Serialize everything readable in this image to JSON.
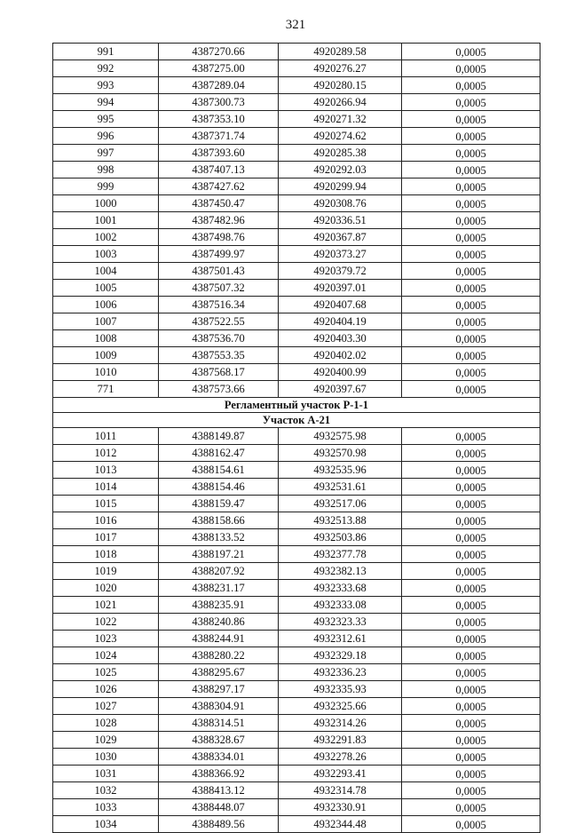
{
  "page_number": "321",
  "table": {
    "groups": [
      {
        "rows": [
          [
            "991",
            "4387270.66",
            "4920289.58",
            "0,0005"
          ],
          [
            "992",
            "4387275.00",
            "4920276.27",
            "0,0005"
          ],
          [
            "993",
            "4387289.04",
            "4920280.15",
            "0,0005"
          ],
          [
            "994",
            "4387300.73",
            "4920266.94",
            "0,0005"
          ],
          [
            "995",
            "4387353.10",
            "4920271.32",
            "0,0005"
          ],
          [
            "996",
            "4387371.74",
            "4920274.62",
            "0,0005"
          ],
          [
            "997",
            "4387393.60",
            "4920285.38",
            "0,0005"
          ],
          [
            "998",
            "4387407.13",
            "4920292.03",
            "0,0005"
          ],
          [
            "999",
            "4387427.62",
            "4920299.94",
            "0,0005"
          ],
          [
            "1000",
            "4387450.47",
            "4920308.76",
            "0,0005"
          ],
          [
            "1001",
            "4387482.96",
            "4920336.51",
            "0,0005"
          ],
          [
            "1002",
            "4387498.76",
            "4920367.87",
            "0,0005"
          ],
          [
            "1003",
            "4387499.97",
            "4920373.27",
            "0,0005"
          ],
          [
            "1004",
            "4387501.43",
            "4920379.72",
            "0,0005"
          ],
          [
            "1005",
            "4387507.32",
            "4920397.01",
            "0,0005"
          ],
          [
            "1006",
            "4387516.34",
            "4920407.68",
            "0,0005"
          ],
          [
            "1007",
            "4387522.55",
            "4920404.19",
            "0,0005"
          ],
          [
            "1008",
            "4387536.70",
            "4920403.30",
            "0,0005"
          ],
          [
            "1009",
            "4387553.35",
            "4920402.02",
            "0,0005"
          ],
          [
            "1010",
            "4387568.17",
            "4920400.99",
            "0,0005"
          ],
          [
            "771",
            "4387573.66",
            "4920397.67",
            "0,0005"
          ]
        ]
      },
      {
        "section_titles": [
          "Регламентный участок Р-1-1",
          "Участок А-21"
        ],
        "rows": [
          [
            "1011",
            "4388149.87",
            "4932575.98",
            "0,0005"
          ],
          [
            "1012",
            "4388162.47",
            "4932570.98",
            "0,0005"
          ],
          [
            "1013",
            "4388154.61",
            "4932535.96",
            "0,0005"
          ],
          [
            "1014",
            "4388154.46",
            "4932531.61",
            "0,0005"
          ],
          [
            "1015",
            "4388159.47",
            "4932517.06",
            "0,0005"
          ],
          [
            "1016",
            "4388158.66",
            "4932513.88",
            "0,0005"
          ],
          [
            "1017",
            "4388133.52",
            "4932503.86",
            "0,0005"
          ],
          [
            "1018",
            "4388197.21",
            "4932377.78",
            "0,0005"
          ],
          [
            "1019",
            "4388207.92",
            "4932382.13",
            "0,0005"
          ],
          [
            "1020",
            "4388231.17",
            "4932333.68",
            "0,0005"
          ],
          [
            "1021",
            "4388235.91",
            "4932333.08",
            "0,0005"
          ],
          [
            "1022",
            "4388240.86",
            "4932323.33",
            "0,0005"
          ],
          [
            "1023",
            "4388244.91",
            "4932312.61",
            "0,0005"
          ],
          [
            "1024",
            "4388280.22",
            "4932329.18",
            "0,0005"
          ],
          [
            "1025",
            "4388295.67",
            "4932336.23",
            "0,0005"
          ],
          [
            "1026",
            "4388297.17",
            "4932335.93",
            "0,0005"
          ],
          [
            "1027",
            "4388304.91",
            "4932325.66",
            "0,0005"
          ],
          [
            "1028",
            "4388314.51",
            "4932314.26",
            "0,0005"
          ],
          [
            "1029",
            "4388328.67",
            "4932291.83",
            "0,0005"
          ],
          [
            "1030",
            "4388334.01",
            "4932278.26",
            "0,0005"
          ],
          [
            "1031",
            "4388366.92",
            "4932293.41",
            "0,0005"
          ],
          [
            "1032",
            "4388413.12",
            "4932314.78",
            "0,0005"
          ],
          [
            "1033",
            "4388448.07",
            "4932330.91",
            "0,0005"
          ],
          [
            "1034",
            "4388489.56",
            "4932344.48",
            "0,0005"
          ]
        ]
      }
    ]
  }
}
